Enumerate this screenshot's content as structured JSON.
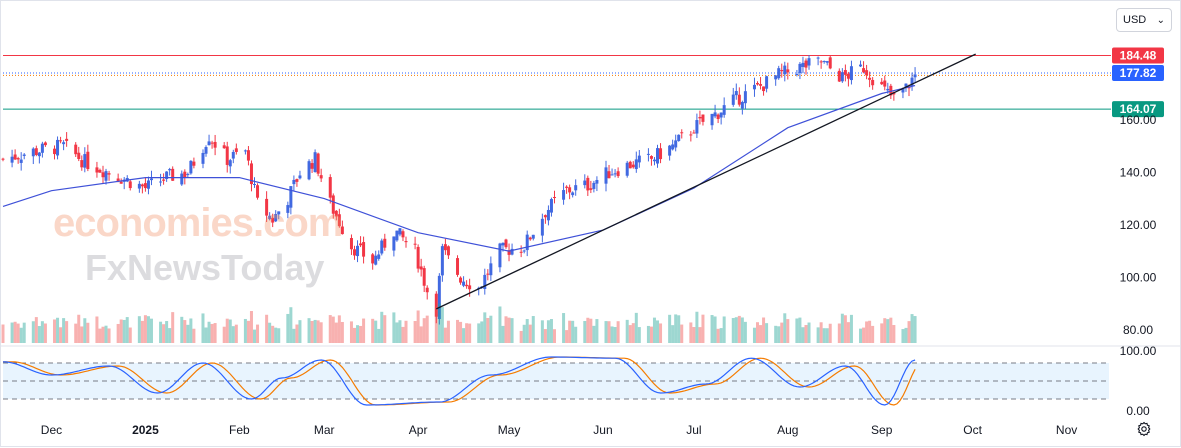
{
  "ui": {
    "currency": "USD",
    "watermark_line1": "economies.com",
    "watermark_line2": "FxNewsToday",
    "settings_icon": "gear-icon",
    "dropdown_icon": "chevron-down-icon"
  },
  "chart_data": [
    {
      "type": "candlestick",
      "title": "",
      "y_ticks": [
        "160.00",
        "140.00",
        "120.00",
        "100.00",
        "80.00"
      ],
      "ylim": [
        75,
        190
      ],
      "x_tick_labels": [
        "Dec",
        "2025",
        "Feb",
        "Mar",
        "Apr",
        "May",
        "Jun",
        "Jul",
        "Aug",
        "Sep",
        "Oct",
        "Nov"
      ],
      "x_tick_dates": [
        "2024-12-01",
        "2025-01-01",
        "2025-02-01",
        "2025-03-01",
        "2025-04-01",
        "2025-05-01",
        "2025-06-01",
        "2025-07-01",
        "2025-08-01",
        "2025-09-01",
        "2025-10-01",
        "2025-11-01"
      ],
      "date_range": [
        "2024-11-15",
        "2025-11-15"
      ],
      "price_levels": [
        {
          "label": "184.48",
          "value": 184.48,
          "color": "#f23645",
          "style": "solid"
        },
        {
          "label": "177.82",
          "value": 177.82,
          "color": "#2962ff",
          "style": "dotted"
        },
        {
          "label": "164.07",
          "value": 164.07,
          "color": "#089981",
          "style": "solid"
        }
      ],
      "close_path": [
        [
          "2024-11-15",
          145
        ],
        [
          "2024-11-25",
          148
        ],
        [
          "2024-12-05",
          150
        ],
        [
          "2024-12-12",
          144
        ],
        [
          "2024-12-20",
          140
        ],
        [
          "2025-01-01",
          134
        ],
        [
          "2025-01-08",
          138
        ],
        [
          "2025-01-15",
          140
        ],
        [
          "2025-01-22",
          154
        ],
        [
          "2025-01-28",
          145
        ],
        [
          "2025-02-03",
          148
        ],
        [
          "2025-02-07",
          128
        ],
        [
          "2025-02-12",
          122
        ],
        [
          "2025-02-17",
          130
        ],
        [
          "2025-02-21",
          140
        ],
        [
          "2025-02-26",
          145
        ],
        [
          "2025-03-03",
          128
        ],
        [
          "2025-03-10",
          112
        ],
        [
          "2025-03-17",
          106
        ],
        [
          "2025-03-24",
          118
        ],
        [
          "2025-03-31",
          110
        ],
        [
          "2025-04-04",
          95
        ],
        [
          "2025-04-07",
          88
        ],
        [
          "2025-04-09",
          110
        ],
        [
          "2025-04-15",
          100
        ],
        [
          "2025-04-21",
          96
        ],
        [
          "2025-04-28",
          110
        ],
        [
          "2025-05-06",
          112
        ],
        [
          "2025-05-13",
          125
        ],
        [
          "2025-05-20",
          133
        ],
        [
          "2025-05-27",
          135
        ],
        [
          "2025-06-03",
          140
        ],
        [
          "2025-06-10",
          143
        ],
        [
          "2025-06-17",
          145
        ],
        [
          "2025-06-24",
          150
        ],
        [
          "2025-07-01",
          157
        ],
        [
          "2025-07-08",
          162
        ],
        [
          "2025-07-15",
          168
        ],
        [
          "2025-07-22",
          172
        ],
        [
          "2025-07-29",
          177
        ],
        [
          "2025-08-05",
          180
        ],
        [
          "2025-08-12",
          182
        ],
        [
          "2025-08-19",
          176
        ],
        [
          "2025-08-26",
          180
        ],
        [
          "2025-09-02",
          171
        ],
        [
          "2025-09-05",
          168
        ],
        [
          "2025-09-09",
          172
        ],
        [
          "2025-09-12",
          177
        ]
      ],
      "moving_average": [
        [
          "2024-11-15",
          127
        ],
        [
          "2024-12-01",
          133
        ],
        [
          "2025-01-01",
          138
        ],
        [
          "2025-02-01",
          138
        ],
        [
          "2025-03-01",
          130
        ],
        [
          "2025-04-01",
          117
        ],
        [
          "2025-05-01",
          110
        ],
        [
          "2025-06-01",
          118
        ],
        [
          "2025-07-01",
          134
        ],
        [
          "2025-08-01",
          157
        ],
        [
          "2025-09-01",
          170
        ],
        [
          "2025-09-12",
          173
        ]
      ],
      "trendline": [
        [
          "2025-04-07",
          88
        ],
        [
          "2025-10-02",
          185
        ]
      ],
      "series": [
        {
          "name": "",
          "color_up": "#4169e1",
          "color_down": "#f23645"
        },
        {
          "name": "",
          "color": "#3f51d8"
        }
      ]
    },
    {
      "type": "line",
      "title": "",
      "y_ticks": [
        "100.00",
        "0.00"
      ],
      "ylim": [
        0,
        100
      ],
      "band": [
        20,
        80
      ],
      "levels": [
        80,
        50,
        20
      ],
      "k_points": [
        [
          "2024-11-15",
          82
        ],
        [
          "2024-12-01",
          60
        ],
        [
          "2024-12-20",
          75
        ],
        [
          "2025-01-05",
          30
        ],
        [
          "2025-01-20",
          80
        ],
        [
          "2025-02-05",
          20
        ],
        [
          "2025-02-15",
          55
        ],
        [
          "2025-02-28",
          85
        ],
        [
          "2025-03-15",
          10
        ],
        [
          "2025-04-08",
          15
        ],
        [
          "2025-04-25",
          60
        ],
        [
          "2025-05-15",
          90
        ],
        [
          "2025-06-05",
          88
        ],
        [
          "2025-06-20",
          30
        ],
        [
          "2025-07-05",
          45
        ],
        [
          "2025-07-20",
          88
        ],
        [
          "2025-08-05",
          40
        ],
        [
          "2025-08-20",
          75
        ],
        [
          "2025-09-02",
          10
        ],
        [
          "2025-09-12",
          85
        ]
      ],
      "series": [
        {
          "name": "",
          "color": "#2962ff"
        },
        {
          "name": "",
          "color": "#f57c00"
        }
      ]
    }
  ]
}
